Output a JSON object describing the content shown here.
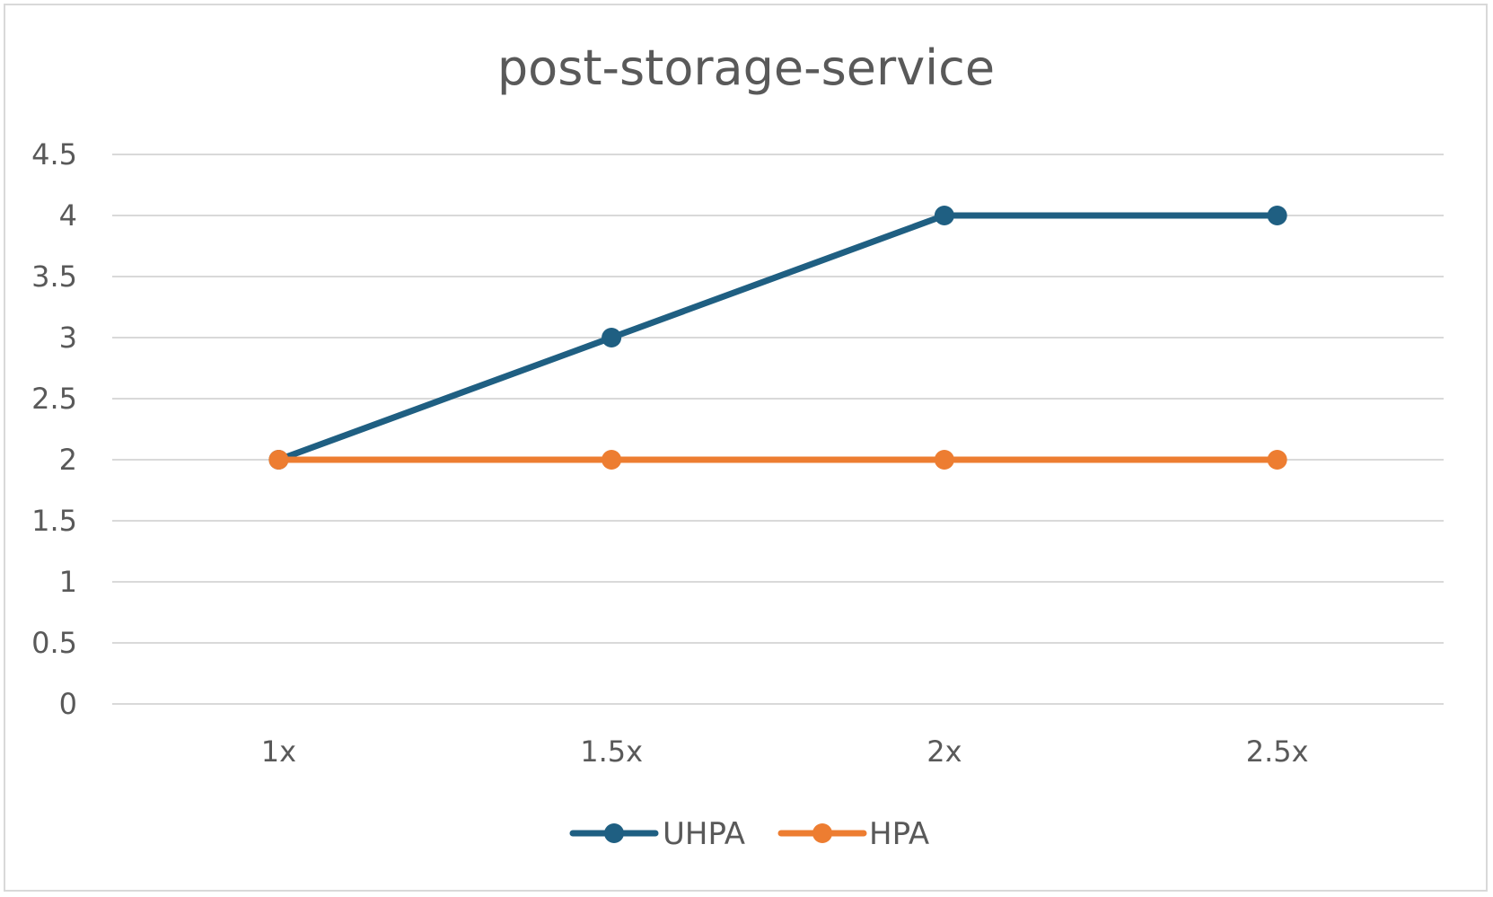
{
  "chart_data": {
    "type": "line",
    "title": "post-storage-service",
    "xlabel": "",
    "ylabel": "",
    "categories": [
      "1x",
      "1.5x",
      "2x",
      "2.5x"
    ],
    "ylim": [
      0,
      4.5
    ],
    "yticks": [
      "0",
      "0.5",
      "1",
      "1.5",
      "2",
      "2.5",
      "3",
      "3.5",
      "4",
      "4.5"
    ],
    "grid": true,
    "legend_position": "bottom",
    "series": [
      {
        "name": "UHPA",
        "color": "#1f5f82",
        "values": [
          2,
          3,
          4,
          4
        ]
      },
      {
        "name": "HPA",
        "color": "#ed7d31",
        "values": [
          2,
          2,
          2,
          2
        ]
      }
    ]
  }
}
